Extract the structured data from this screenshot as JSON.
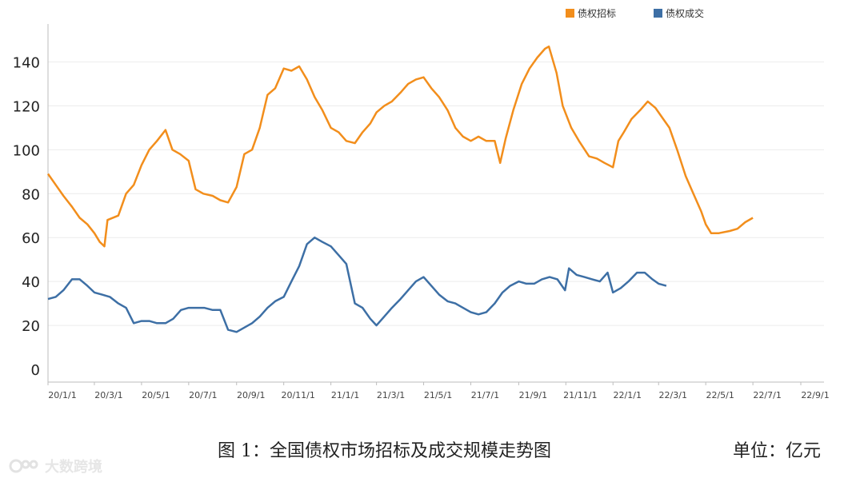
{
  "caption": {
    "title": "图 1：全国债权市场招标及成交规模走势图",
    "unit": "单位：亿元"
  },
  "watermark": {
    "text": "大数跨境",
    "icon": "brand-logo-icon"
  },
  "chart_data": {
    "type": "line",
    "title": "",
    "xlabel": "",
    "ylabel": "",
    "ylim": [
      0,
      150
    ],
    "yticks": [
      0,
      20,
      40,
      60,
      80,
      100,
      120,
      140
    ],
    "grid": true,
    "legend": "top-right",
    "x_start": "2020-01-01",
    "x_end": "2022-10-01",
    "xtick_labels": [
      "20/1/1",
      "20/3/1",
      "20/5/1",
      "20/7/1",
      "20/9/1",
      "20/11/1",
      "21/1/1",
      "21/3/1",
      "21/5/1",
      "21/7/1",
      "21/9/1",
      "21/11/1",
      "22/1/1",
      "22/3/1",
      "22/5/1",
      "22/7/1",
      "22/9/1"
    ],
    "xtick_dates": [
      "2020-01-01",
      "2020-03-01",
      "2020-05-01",
      "2020-07-01",
      "2020-09-01",
      "2020-11-01",
      "2021-01-01",
      "2021-03-01",
      "2021-05-01",
      "2021-07-01",
      "2021-09-01",
      "2021-11-01",
      "2022-01-01",
      "2022-03-01",
      "2022-05-01",
      "2022-07-01",
      "2022-09-01"
    ],
    "series": [
      {
        "name": "债权招标",
        "color": "#f28e1c",
        "points": [
          [
            "2020-01-01",
            89
          ],
          [
            "2020-01-11",
            84
          ],
          [
            "2020-01-21",
            79
          ],
          [
            "2020-02-01",
            74
          ],
          [
            "2020-02-11",
            69
          ],
          [
            "2020-02-21",
            66
          ],
          [
            "2020-03-01",
            62
          ],
          [
            "2020-03-08",
            58
          ],
          [
            "2020-03-14",
            56
          ],
          [
            "2020-03-18",
            68
          ],
          [
            "2020-04-01",
            70
          ],
          [
            "2020-04-11",
            80
          ],
          [
            "2020-04-21",
            84
          ],
          [
            "2020-05-01",
            93
          ],
          [
            "2020-05-11",
            100
          ],
          [
            "2020-05-21",
            104
          ],
          [
            "2020-06-01",
            109
          ],
          [
            "2020-06-10",
            100
          ],
          [
            "2020-06-20",
            98
          ],
          [
            "2020-07-01",
            95
          ],
          [
            "2020-07-10",
            82
          ],
          [
            "2020-07-20",
            80
          ],
          [
            "2020-08-01",
            79
          ],
          [
            "2020-08-11",
            77
          ],
          [
            "2020-08-21",
            76
          ],
          [
            "2020-09-01",
            83
          ],
          [
            "2020-09-11",
            98
          ],
          [
            "2020-09-21",
            100
          ],
          [
            "2020-10-01",
            110
          ],
          [
            "2020-10-11",
            125
          ],
          [
            "2020-10-21",
            128
          ],
          [
            "2020-11-01",
            137
          ],
          [
            "2020-11-11",
            136
          ],
          [
            "2020-11-21",
            138
          ],
          [
            "2020-12-01",
            132
          ],
          [
            "2020-12-11",
            124
          ],
          [
            "2020-12-21",
            118
          ],
          [
            "2021-01-01",
            110
          ],
          [
            "2021-01-11",
            108
          ],
          [
            "2021-01-21",
            104
          ],
          [
            "2021-02-01",
            103
          ],
          [
            "2021-02-11",
            108
          ],
          [
            "2021-02-21",
            112
          ],
          [
            "2021-03-01",
            117
          ],
          [
            "2021-03-11",
            120
          ],
          [
            "2021-03-21",
            122
          ],
          [
            "2021-04-01",
            126
          ],
          [
            "2021-04-11",
            130
          ],
          [
            "2021-04-21",
            132
          ],
          [
            "2021-05-01",
            133
          ],
          [
            "2021-05-11",
            128
          ],
          [
            "2021-05-21",
            124
          ],
          [
            "2021-06-01",
            118
          ],
          [
            "2021-06-11",
            110
          ],
          [
            "2021-06-21",
            106
          ],
          [
            "2021-07-01",
            104
          ],
          [
            "2021-07-11",
            106
          ],
          [
            "2021-07-21",
            104
          ],
          [
            "2021-08-01",
            104
          ],
          [
            "2021-08-08",
            94
          ],
          [
            "2021-08-15",
            105
          ],
          [
            "2021-08-25",
            118
          ],
          [
            "2021-09-05",
            130
          ],
          [
            "2021-09-15",
            137
          ],
          [
            "2021-09-25",
            142
          ],
          [
            "2021-10-05",
            146
          ],
          [
            "2021-10-10",
            147
          ],
          [
            "2021-10-20",
            135
          ],
          [
            "2021-10-28",
            120
          ],
          [
            "2021-11-08",
            110
          ],
          [
            "2021-11-18",
            104
          ],
          [
            "2021-12-01",
            97
          ],
          [
            "2021-12-11",
            96
          ],
          [
            "2021-12-21",
            94
          ],
          [
            "2022-01-01",
            92
          ],
          [
            "2022-01-08",
            104
          ],
          [
            "2022-01-15",
            108
          ],
          [
            "2022-01-25",
            114
          ],
          [
            "2022-02-05",
            118
          ],
          [
            "2022-02-15",
            122
          ],
          [
            "2022-02-25",
            119
          ],
          [
            "2022-03-05",
            115
          ],
          [
            "2022-03-15",
            110
          ],
          [
            "2022-03-25",
            100
          ],
          [
            "2022-04-05",
            88
          ],
          [
            "2022-04-15",
            80
          ],
          [
            "2022-04-25",
            72
          ],
          [
            "2022-05-01",
            66
          ],
          [
            "2022-05-08",
            62
          ],
          [
            "2022-05-18",
            62
          ],
          [
            "2022-06-01",
            63
          ],
          [
            "2022-06-11",
            64
          ],
          [
            "2022-06-21",
            67
          ],
          [
            "2022-07-01",
            69
          ]
        ]
      },
      {
        "name": "债权成交",
        "color": "#3d6fa5",
        "points": [
          [
            "2020-01-01",
            32
          ],
          [
            "2020-01-11",
            33
          ],
          [
            "2020-01-21",
            36
          ],
          [
            "2020-02-01",
            41
          ],
          [
            "2020-02-11",
            41
          ],
          [
            "2020-02-21",
            38
          ],
          [
            "2020-03-01",
            35
          ],
          [
            "2020-03-11",
            34
          ],
          [
            "2020-03-21",
            33
          ],
          [
            "2020-04-01",
            30
          ],
          [
            "2020-04-11",
            28
          ],
          [
            "2020-04-21",
            21
          ],
          [
            "2020-05-01",
            22
          ],
          [
            "2020-05-11",
            22
          ],
          [
            "2020-05-21",
            21
          ],
          [
            "2020-06-01",
            21
          ],
          [
            "2020-06-11",
            23
          ],
          [
            "2020-06-21",
            27
          ],
          [
            "2020-07-01",
            28
          ],
          [
            "2020-07-11",
            28
          ],
          [
            "2020-07-21",
            28
          ],
          [
            "2020-08-01",
            27
          ],
          [
            "2020-08-11",
            27
          ],
          [
            "2020-08-21",
            18
          ],
          [
            "2020-09-01",
            17
          ],
          [
            "2020-09-11",
            19
          ],
          [
            "2020-09-21",
            21
          ],
          [
            "2020-10-01",
            24
          ],
          [
            "2020-10-11",
            28
          ],
          [
            "2020-10-21",
            31
          ],
          [
            "2020-11-01",
            33
          ],
          [
            "2020-11-11",
            40
          ],
          [
            "2020-11-21",
            47
          ],
          [
            "2020-12-01",
            57
          ],
          [
            "2020-12-11",
            60
          ],
          [
            "2020-12-21",
            58
          ],
          [
            "2021-01-01",
            56
          ],
          [
            "2021-01-11",
            52
          ],
          [
            "2021-01-21",
            48
          ],
          [
            "2021-02-01",
            30
          ],
          [
            "2021-02-11",
            28
          ],
          [
            "2021-02-21",
            23
          ],
          [
            "2021-03-01",
            20
          ],
          [
            "2021-03-11",
            24
          ],
          [
            "2021-03-21",
            28
          ],
          [
            "2021-04-01",
            32
          ],
          [
            "2021-04-11",
            36
          ],
          [
            "2021-04-21",
            40
          ],
          [
            "2021-05-01",
            42
          ],
          [
            "2021-05-11",
            38
          ],
          [
            "2021-05-21",
            34
          ],
          [
            "2021-06-01",
            31
          ],
          [
            "2021-06-11",
            30
          ],
          [
            "2021-06-21",
            28
          ],
          [
            "2021-07-01",
            26
          ],
          [
            "2021-07-11",
            25
          ],
          [
            "2021-07-21",
            26
          ],
          [
            "2021-08-01",
            30
          ],
          [
            "2021-08-11",
            35
          ],
          [
            "2021-08-21",
            38
          ],
          [
            "2021-09-01",
            40
          ],
          [
            "2021-09-11",
            39
          ],
          [
            "2021-09-21",
            39
          ],
          [
            "2021-10-01",
            41
          ],
          [
            "2021-10-11",
            42
          ],
          [
            "2021-10-21",
            41
          ],
          [
            "2021-10-31",
            36
          ],
          [
            "2021-11-05",
            46
          ],
          [
            "2021-11-15",
            43
          ],
          [
            "2021-11-25",
            42
          ],
          [
            "2021-12-05",
            41
          ],
          [
            "2021-12-15",
            40
          ],
          [
            "2021-12-25",
            44
          ],
          [
            "2022-01-01",
            35
          ],
          [
            "2022-01-11",
            37
          ],
          [
            "2022-01-21",
            40
          ],
          [
            "2022-02-01",
            44
          ],
          [
            "2022-02-11",
            44
          ],
          [
            "2022-02-21",
            41
          ],
          [
            "2022-03-01",
            39
          ],
          [
            "2022-03-11",
            38
          ]
        ]
      }
    ]
  }
}
